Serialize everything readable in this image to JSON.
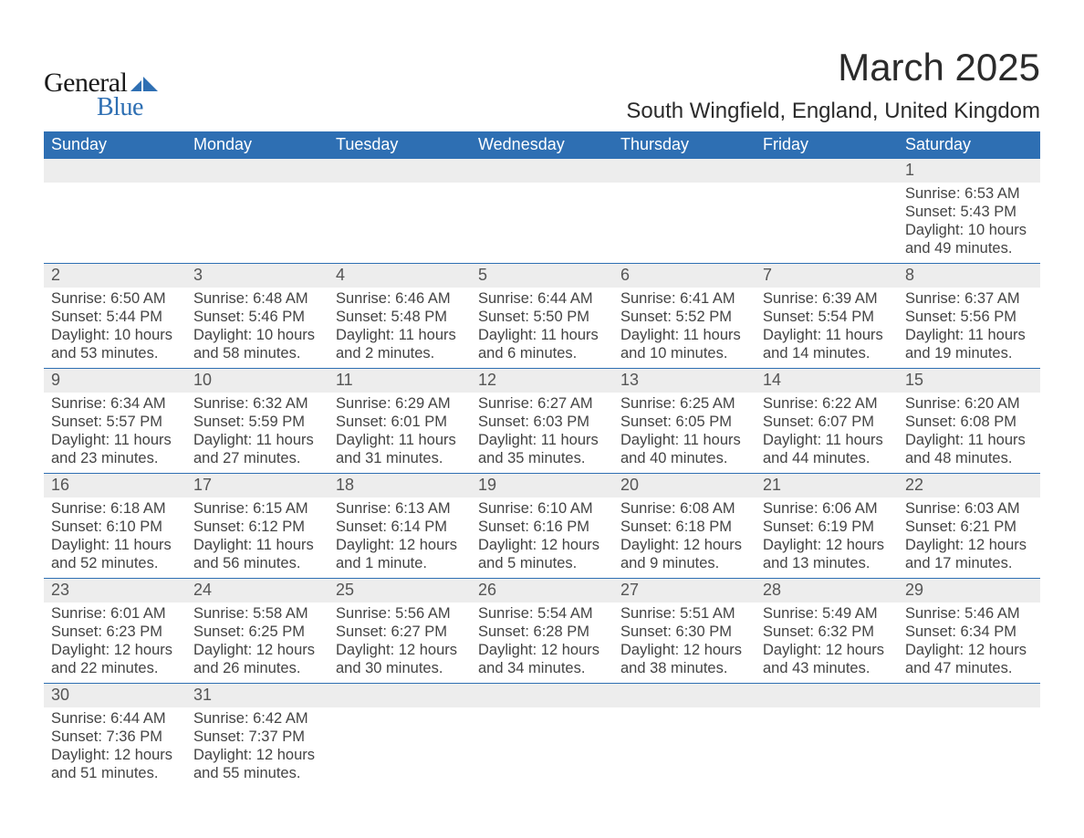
{
  "logo": {
    "text1": "General",
    "text2": "Blue"
  },
  "title": {
    "month": "March 2025",
    "location": "South Wingfield, England, United Kingdom"
  },
  "style": {
    "header_bg": "#2e6fb3",
    "header_text": "#ffffff",
    "daynum_bg": "#ededed",
    "row_divider": "#2e6fb3",
    "body_text": "#444444",
    "title_text": "#2b2b2b",
    "logo_dark": "#1a1a1a",
    "logo_blue": "#2e6fb3",
    "fontsize_month": 42,
    "fontsize_location": 24,
    "fontsize_dayheader": 18,
    "fontsize_daynum": 18,
    "fontsize_detail": 16.5
  },
  "days_of_week": [
    "Sunday",
    "Monday",
    "Tuesday",
    "Wednesday",
    "Thursday",
    "Friday",
    "Saturday"
  ],
  "weeks": [
    [
      null,
      null,
      null,
      null,
      null,
      null,
      {
        "n": "1",
        "sunrise": "Sunrise: 6:53 AM",
        "sunset": "Sunset: 5:43 PM",
        "dl1": "Daylight: 10 hours",
        "dl2": "and 49 minutes."
      }
    ],
    [
      {
        "n": "2",
        "sunrise": "Sunrise: 6:50 AM",
        "sunset": "Sunset: 5:44 PM",
        "dl1": "Daylight: 10 hours",
        "dl2": "and 53 minutes."
      },
      {
        "n": "3",
        "sunrise": "Sunrise: 6:48 AM",
        "sunset": "Sunset: 5:46 PM",
        "dl1": "Daylight: 10 hours",
        "dl2": "and 58 minutes."
      },
      {
        "n": "4",
        "sunrise": "Sunrise: 6:46 AM",
        "sunset": "Sunset: 5:48 PM",
        "dl1": "Daylight: 11 hours",
        "dl2": "and 2 minutes."
      },
      {
        "n": "5",
        "sunrise": "Sunrise: 6:44 AM",
        "sunset": "Sunset: 5:50 PM",
        "dl1": "Daylight: 11 hours",
        "dl2": "and 6 minutes."
      },
      {
        "n": "6",
        "sunrise": "Sunrise: 6:41 AM",
        "sunset": "Sunset: 5:52 PM",
        "dl1": "Daylight: 11 hours",
        "dl2": "and 10 minutes."
      },
      {
        "n": "7",
        "sunrise": "Sunrise: 6:39 AM",
        "sunset": "Sunset: 5:54 PM",
        "dl1": "Daylight: 11 hours",
        "dl2": "and 14 minutes."
      },
      {
        "n": "8",
        "sunrise": "Sunrise: 6:37 AM",
        "sunset": "Sunset: 5:56 PM",
        "dl1": "Daylight: 11 hours",
        "dl2": "and 19 minutes."
      }
    ],
    [
      {
        "n": "9",
        "sunrise": "Sunrise: 6:34 AM",
        "sunset": "Sunset: 5:57 PM",
        "dl1": "Daylight: 11 hours",
        "dl2": "and 23 minutes."
      },
      {
        "n": "10",
        "sunrise": "Sunrise: 6:32 AM",
        "sunset": "Sunset: 5:59 PM",
        "dl1": "Daylight: 11 hours",
        "dl2": "and 27 minutes."
      },
      {
        "n": "11",
        "sunrise": "Sunrise: 6:29 AM",
        "sunset": "Sunset: 6:01 PM",
        "dl1": "Daylight: 11 hours",
        "dl2": "and 31 minutes."
      },
      {
        "n": "12",
        "sunrise": "Sunrise: 6:27 AM",
        "sunset": "Sunset: 6:03 PM",
        "dl1": "Daylight: 11 hours",
        "dl2": "and 35 minutes."
      },
      {
        "n": "13",
        "sunrise": "Sunrise: 6:25 AM",
        "sunset": "Sunset: 6:05 PM",
        "dl1": "Daylight: 11 hours",
        "dl2": "and 40 minutes."
      },
      {
        "n": "14",
        "sunrise": "Sunrise: 6:22 AM",
        "sunset": "Sunset: 6:07 PM",
        "dl1": "Daylight: 11 hours",
        "dl2": "and 44 minutes."
      },
      {
        "n": "15",
        "sunrise": "Sunrise: 6:20 AM",
        "sunset": "Sunset: 6:08 PM",
        "dl1": "Daylight: 11 hours",
        "dl2": "and 48 minutes."
      }
    ],
    [
      {
        "n": "16",
        "sunrise": "Sunrise: 6:18 AM",
        "sunset": "Sunset: 6:10 PM",
        "dl1": "Daylight: 11 hours",
        "dl2": "and 52 minutes."
      },
      {
        "n": "17",
        "sunrise": "Sunrise: 6:15 AM",
        "sunset": "Sunset: 6:12 PM",
        "dl1": "Daylight: 11 hours",
        "dl2": "and 56 minutes."
      },
      {
        "n": "18",
        "sunrise": "Sunrise: 6:13 AM",
        "sunset": "Sunset: 6:14 PM",
        "dl1": "Daylight: 12 hours",
        "dl2": "and 1 minute."
      },
      {
        "n": "19",
        "sunrise": "Sunrise: 6:10 AM",
        "sunset": "Sunset: 6:16 PM",
        "dl1": "Daylight: 12 hours",
        "dl2": "and 5 minutes."
      },
      {
        "n": "20",
        "sunrise": "Sunrise: 6:08 AM",
        "sunset": "Sunset: 6:18 PM",
        "dl1": "Daylight: 12 hours",
        "dl2": "and 9 minutes."
      },
      {
        "n": "21",
        "sunrise": "Sunrise: 6:06 AM",
        "sunset": "Sunset: 6:19 PM",
        "dl1": "Daylight: 12 hours",
        "dl2": "and 13 minutes."
      },
      {
        "n": "22",
        "sunrise": "Sunrise: 6:03 AM",
        "sunset": "Sunset: 6:21 PM",
        "dl1": "Daylight: 12 hours",
        "dl2": "and 17 minutes."
      }
    ],
    [
      {
        "n": "23",
        "sunrise": "Sunrise: 6:01 AM",
        "sunset": "Sunset: 6:23 PM",
        "dl1": "Daylight: 12 hours",
        "dl2": "and 22 minutes."
      },
      {
        "n": "24",
        "sunrise": "Sunrise: 5:58 AM",
        "sunset": "Sunset: 6:25 PM",
        "dl1": "Daylight: 12 hours",
        "dl2": "and 26 minutes."
      },
      {
        "n": "25",
        "sunrise": "Sunrise: 5:56 AM",
        "sunset": "Sunset: 6:27 PM",
        "dl1": "Daylight: 12 hours",
        "dl2": "and 30 minutes."
      },
      {
        "n": "26",
        "sunrise": "Sunrise: 5:54 AM",
        "sunset": "Sunset: 6:28 PM",
        "dl1": "Daylight: 12 hours",
        "dl2": "and 34 minutes."
      },
      {
        "n": "27",
        "sunrise": "Sunrise: 5:51 AM",
        "sunset": "Sunset: 6:30 PM",
        "dl1": "Daylight: 12 hours",
        "dl2": "and 38 minutes."
      },
      {
        "n": "28",
        "sunrise": "Sunrise: 5:49 AM",
        "sunset": "Sunset: 6:32 PM",
        "dl1": "Daylight: 12 hours",
        "dl2": "and 43 minutes."
      },
      {
        "n": "29",
        "sunrise": "Sunrise: 5:46 AM",
        "sunset": "Sunset: 6:34 PM",
        "dl1": "Daylight: 12 hours",
        "dl2": "and 47 minutes."
      }
    ],
    [
      {
        "n": "30",
        "sunrise": "Sunrise: 6:44 AM",
        "sunset": "Sunset: 7:36 PM",
        "dl1": "Daylight: 12 hours",
        "dl2": "and 51 minutes."
      },
      {
        "n": "31",
        "sunrise": "Sunrise: 6:42 AM",
        "sunset": "Sunset: 7:37 PM",
        "dl1": "Daylight: 12 hours",
        "dl2": "and 55 minutes."
      },
      null,
      null,
      null,
      null,
      null
    ]
  ]
}
